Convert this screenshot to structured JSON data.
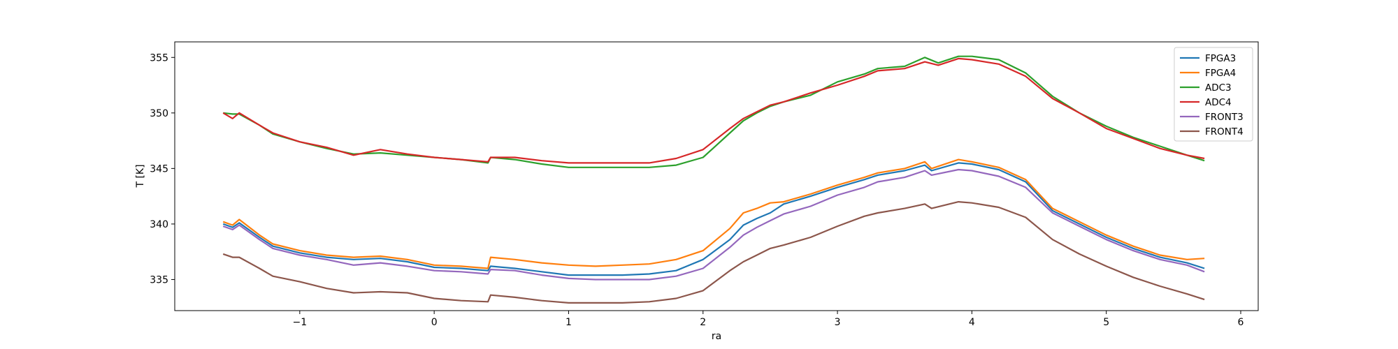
{
  "chart_data": {
    "type": "line",
    "title": "",
    "xlabel": "ra",
    "ylabel": "T [K]",
    "xlim": [
      -1.93,
      6.13
    ],
    "ylim": [
      332.2,
      356.4
    ],
    "xticks": [
      -1,
      0,
      1,
      2,
      3,
      4,
      5,
      6
    ],
    "yticks": [
      335,
      340,
      345,
      350,
      355
    ],
    "grid": false,
    "legend_position": "top-right",
    "series": [
      {
        "name": "FPGA3",
        "color": "#1f77b4",
        "points": [
          [
            -1.57,
            340.0
          ],
          [
            -1.5,
            339.7
          ],
          [
            -1.45,
            340.1
          ],
          [
            -1.3,
            338.8
          ],
          [
            -1.2,
            338.0
          ],
          [
            -1.0,
            337.4
          ],
          [
            -0.8,
            337.0
          ],
          [
            -0.6,
            336.8
          ],
          [
            -0.4,
            336.9
          ],
          [
            -0.2,
            336.6
          ],
          [
            0.0,
            336.1
          ],
          [
            0.2,
            336.0
          ],
          [
            0.4,
            335.8
          ],
          [
            0.42,
            336.2
          ],
          [
            0.6,
            336.0
          ],
          [
            0.8,
            335.7
          ],
          [
            1.0,
            335.4
          ],
          [
            1.2,
            335.4
          ],
          [
            1.4,
            335.4
          ],
          [
            1.6,
            335.5
          ],
          [
            1.8,
            335.8
          ],
          [
            2.0,
            336.8
          ],
          [
            2.2,
            338.6
          ],
          [
            2.3,
            339.9
          ],
          [
            2.4,
            340.5
          ],
          [
            2.5,
            341.0
          ],
          [
            2.6,
            341.8
          ],
          [
            2.8,
            342.5
          ],
          [
            3.0,
            343.3
          ],
          [
            3.2,
            344.0
          ],
          [
            3.3,
            344.4
          ],
          [
            3.5,
            344.8
          ],
          [
            3.65,
            345.3
          ],
          [
            3.7,
            344.8
          ],
          [
            3.9,
            345.5
          ],
          [
            4.0,
            345.4
          ],
          [
            4.2,
            344.9
          ],
          [
            4.4,
            343.8
          ],
          [
            4.6,
            341.2
          ],
          [
            4.8,
            340.0
          ],
          [
            5.0,
            338.8
          ],
          [
            5.2,
            337.8
          ],
          [
            5.4,
            337.0
          ],
          [
            5.6,
            336.5
          ],
          [
            5.73,
            336.0
          ]
        ]
      },
      {
        "name": "FPGA4",
        "color": "#ff7f0e",
        "points": [
          [
            -1.57,
            340.2
          ],
          [
            -1.5,
            339.9
          ],
          [
            -1.45,
            340.4
          ],
          [
            -1.3,
            339.0
          ],
          [
            -1.2,
            338.2
          ],
          [
            -1.0,
            337.6
          ],
          [
            -0.8,
            337.2
          ],
          [
            -0.6,
            337.0
          ],
          [
            -0.4,
            337.1
          ],
          [
            -0.2,
            336.8
          ],
          [
            0.0,
            336.3
          ],
          [
            0.2,
            336.2
          ],
          [
            0.4,
            336.0
          ],
          [
            0.42,
            337.0
          ],
          [
            0.6,
            336.8
          ],
          [
            0.8,
            336.5
          ],
          [
            1.0,
            336.3
          ],
          [
            1.2,
            336.2
          ],
          [
            1.4,
            336.3
          ],
          [
            1.6,
            336.4
          ],
          [
            1.8,
            336.8
          ],
          [
            2.0,
            337.6
          ],
          [
            2.2,
            339.6
          ],
          [
            2.3,
            341.0
          ],
          [
            2.4,
            341.4
          ],
          [
            2.5,
            341.9
          ],
          [
            2.6,
            342.0
          ],
          [
            2.8,
            342.7
          ],
          [
            3.0,
            343.5
          ],
          [
            3.2,
            344.2
          ],
          [
            3.3,
            344.6
          ],
          [
            3.5,
            345.0
          ],
          [
            3.65,
            345.6
          ],
          [
            3.7,
            345.0
          ],
          [
            3.9,
            345.8
          ],
          [
            4.0,
            345.6
          ],
          [
            4.2,
            345.1
          ],
          [
            4.4,
            344.0
          ],
          [
            4.6,
            341.4
          ],
          [
            4.8,
            340.2
          ],
          [
            5.0,
            339.0
          ],
          [
            5.2,
            338.0
          ],
          [
            5.4,
            337.2
          ],
          [
            5.6,
            336.8
          ],
          [
            5.73,
            336.9
          ]
        ]
      },
      {
        "name": "ADC3",
        "color": "#2ca02c",
        "points": [
          [
            -1.57,
            350.0
          ],
          [
            -1.5,
            349.9
          ],
          [
            -1.45,
            349.9
          ],
          [
            -1.3,
            348.9
          ],
          [
            -1.2,
            348.1
          ],
          [
            -1.0,
            347.4
          ],
          [
            -0.8,
            346.8
          ],
          [
            -0.6,
            346.3
          ],
          [
            -0.4,
            346.4
          ],
          [
            -0.2,
            346.2
          ],
          [
            0.0,
            346.0
          ],
          [
            0.2,
            345.8
          ],
          [
            0.4,
            345.5
          ],
          [
            0.42,
            346.0
          ],
          [
            0.6,
            345.8
          ],
          [
            0.8,
            345.4
          ],
          [
            1.0,
            345.1
          ],
          [
            1.2,
            345.1
          ],
          [
            1.4,
            345.1
          ],
          [
            1.6,
            345.1
          ],
          [
            1.8,
            345.3
          ],
          [
            2.0,
            346.0
          ],
          [
            2.2,
            348.2
          ],
          [
            2.3,
            349.3
          ],
          [
            2.4,
            350.0
          ],
          [
            2.5,
            350.6
          ],
          [
            2.6,
            351.0
          ],
          [
            2.8,
            351.6
          ],
          [
            3.0,
            352.8
          ],
          [
            3.2,
            353.5
          ],
          [
            3.3,
            354.0
          ],
          [
            3.5,
            354.2
          ],
          [
            3.65,
            355.0
          ],
          [
            3.75,
            354.5
          ],
          [
            3.9,
            355.1
          ],
          [
            4.0,
            355.1
          ],
          [
            4.2,
            354.8
          ],
          [
            4.4,
            353.6
          ],
          [
            4.6,
            351.5
          ],
          [
            4.8,
            350.0
          ],
          [
            5.0,
            348.8
          ],
          [
            5.2,
            347.8
          ],
          [
            5.4,
            347.0
          ],
          [
            5.6,
            346.2
          ],
          [
            5.73,
            345.7
          ]
        ]
      },
      {
        "name": "ADC4",
        "color": "#d62728",
        "points": [
          [
            -1.57,
            350.0
          ],
          [
            -1.5,
            349.5
          ],
          [
            -1.45,
            350.0
          ],
          [
            -1.3,
            348.9
          ],
          [
            -1.2,
            348.2
          ],
          [
            -1.0,
            347.4
          ],
          [
            -0.8,
            346.9
          ],
          [
            -0.6,
            346.2
          ],
          [
            -0.4,
            346.7
          ],
          [
            -0.2,
            346.3
          ],
          [
            0.0,
            346.0
          ],
          [
            0.2,
            345.8
          ],
          [
            0.4,
            345.6
          ],
          [
            0.42,
            346.0
          ],
          [
            0.6,
            346.0
          ],
          [
            0.8,
            345.7
          ],
          [
            1.0,
            345.5
          ],
          [
            1.2,
            345.5
          ],
          [
            1.4,
            345.5
          ],
          [
            1.6,
            345.5
          ],
          [
            1.8,
            345.9
          ],
          [
            2.0,
            346.7
          ],
          [
            2.2,
            348.6
          ],
          [
            2.3,
            349.5
          ],
          [
            2.4,
            350.1
          ],
          [
            2.5,
            350.7
          ],
          [
            2.6,
            351.0
          ],
          [
            2.8,
            351.8
          ],
          [
            3.0,
            352.5
          ],
          [
            3.2,
            353.3
          ],
          [
            3.3,
            353.8
          ],
          [
            3.5,
            354.0
          ],
          [
            3.65,
            354.6
          ],
          [
            3.75,
            354.3
          ],
          [
            3.9,
            354.9
          ],
          [
            4.0,
            354.8
          ],
          [
            4.2,
            354.4
          ],
          [
            4.4,
            353.3
          ],
          [
            4.6,
            351.3
          ],
          [
            4.8,
            350.0
          ],
          [
            5.0,
            348.6
          ],
          [
            5.2,
            347.7
          ],
          [
            5.4,
            346.8
          ],
          [
            5.6,
            346.2
          ],
          [
            5.73,
            345.9
          ]
        ]
      },
      {
        "name": "FRONT3",
        "color": "#9467bd",
        "points": [
          [
            -1.57,
            339.8
          ],
          [
            -1.5,
            339.5
          ],
          [
            -1.45,
            339.9
          ],
          [
            -1.3,
            338.6
          ],
          [
            -1.2,
            337.8
          ],
          [
            -1.0,
            337.2
          ],
          [
            -0.8,
            336.8
          ],
          [
            -0.6,
            336.3
          ],
          [
            -0.4,
            336.5
          ],
          [
            -0.2,
            336.2
          ],
          [
            0.0,
            335.8
          ],
          [
            0.2,
            335.7
          ],
          [
            0.4,
            335.5
          ],
          [
            0.42,
            335.9
          ],
          [
            0.6,
            335.8
          ],
          [
            0.8,
            335.4
          ],
          [
            1.0,
            335.1
          ],
          [
            1.2,
            335.0
          ],
          [
            1.4,
            335.0
          ],
          [
            1.6,
            335.0
          ],
          [
            1.8,
            335.3
          ],
          [
            2.0,
            336.0
          ],
          [
            2.2,
            337.9
          ],
          [
            2.3,
            339.0
          ],
          [
            2.4,
            339.7
          ],
          [
            2.5,
            340.3
          ],
          [
            2.6,
            340.9
          ],
          [
            2.8,
            341.6
          ],
          [
            3.0,
            342.6
          ],
          [
            3.2,
            343.3
          ],
          [
            3.3,
            343.8
          ],
          [
            3.5,
            344.2
          ],
          [
            3.65,
            344.8
          ],
          [
            3.7,
            344.4
          ],
          [
            3.9,
            344.9
          ],
          [
            4.0,
            344.8
          ],
          [
            4.2,
            344.3
          ],
          [
            4.4,
            343.3
          ],
          [
            4.6,
            341.0
          ],
          [
            4.8,
            339.8
          ],
          [
            5.0,
            338.6
          ],
          [
            5.2,
            337.6
          ],
          [
            5.4,
            336.8
          ],
          [
            5.6,
            336.3
          ],
          [
            5.73,
            335.7
          ]
        ]
      },
      {
        "name": "FRONT4",
        "color": "#8c564b",
        "points": [
          [
            -1.57,
            337.3
          ],
          [
            -1.5,
            337.0
          ],
          [
            -1.45,
            337.0
          ],
          [
            -1.3,
            336.0
          ],
          [
            -1.2,
            335.3
          ],
          [
            -1.0,
            334.8
          ],
          [
            -0.8,
            334.2
          ],
          [
            -0.6,
            333.8
          ],
          [
            -0.4,
            333.9
          ],
          [
            -0.2,
            333.8
          ],
          [
            0.0,
            333.3
          ],
          [
            0.2,
            333.1
          ],
          [
            0.4,
            333.0
          ],
          [
            0.42,
            333.6
          ],
          [
            0.6,
            333.4
          ],
          [
            0.8,
            333.1
          ],
          [
            1.0,
            332.9
          ],
          [
            1.2,
            332.9
          ],
          [
            1.4,
            332.9
          ],
          [
            1.6,
            333.0
          ],
          [
            1.8,
            333.3
          ],
          [
            2.0,
            334.0
          ],
          [
            2.2,
            335.8
          ],
          [
            2.3,
            336.6
          ],
          [
            2.4,
            337.2
          ],
          [
            2.5,
            337.8
          ],
          [
            2.6,
            338.1
          ],
          [
            2.8,
            338.8
          ],
          [
            3.0,
            339.8
          ],
          [
            3.2,
            340.7
          ],
          [
            3.3,
            341.0
          ],
          [
            3.5,
            341.4
          ],
          [
            3.65,
            341.8
          ],
          [
            3.7,
            341.4
          ],
          [
            3.9,
            342.0
          ],
          [
            4.0,
            341.9
          ],
          [
            4.2,
            341.5
          ],
          [
            4.4,
            340.6
          ],
          [
            4.6,
            338.6
          ],
          [
            4.8,
            337.3
          ],
          [
            5.0,
            336.2
          ],
          [
            5.2,
            335.2
          ],
          [
            5.4,
            334.4
          ],
          [
            5.6,
            333.7
          ],
          [
            5.73,
            333.2
          ]
        ]
      }
    ]
  }
}
